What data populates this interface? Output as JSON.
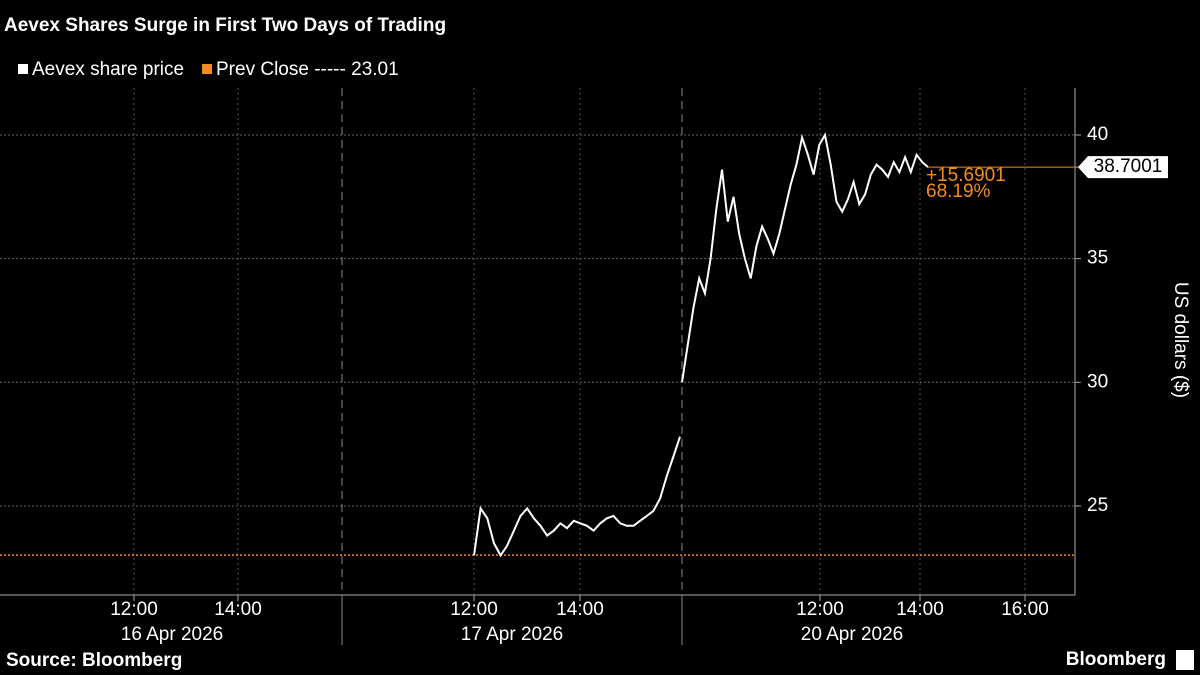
{
  "chart_data": {
    "type": "line",
    "title": "Aevex Shares Surge in First Two Days of Trading",
    "series": [
      {
        "name": "Aevex share price",
        "color": "#ffffff",
        "values": [
          23.0,
          24.9,
          24.5,
          23.5,
          23.0,
          23.4,
          24.0,
          24.6,
          24.9,
          24.5,
          24.2,
          23.8,
          24.0,
          24.3,
          24.1,
          24.4,
          24.3,
          24.2,
          24.0,
          24.3,
          24.5,
          24.6,
          24.3,
          24.2,
          24.2,
          24.4,
          24.6,
          24.8,
          25.3,
          26.2,
          27.0,
          27.8,
          null,
          30.0,
          31.5,
          33.0,
          34.2,
          33.6,
          35.0,
          37.0,
          38.6,
          36.5,
          37.5,
          36.0,
          35.0,
          34.2,
          35.5,
          36.3,
          35.8,
          35.2,
          36.0,
          37.0,
          38.0,
          38.8,
          39.9,
          39.2,
          38.4,
          39.6,
          40.0,
          38.8,
          37.3,
          36.9,
          37.4,
          38.1,
          37.2,
          37.6,
          38.4,
          38.8,
          38.6,
          38.3,
          38.9,
          38.5,
          39.1,
          38.5,
          39.2,
          38.9,
          38.7001
        ]
      }
    ],
    "reference_line": {
      "name": "Prev Close -----",
      "value": 23.01,
      "color": "#f28c1c"
    },
    "last_value_label": "38.7001",
    "change_annotation": {
      "absolute": "+15.6901",
      "percent": "68.19%"
    },
    "sessions": [
      {
        "date": "16 Apr 2026",
        "ticks": [
          "12:00",
          "14:00"
        ]
      },
      {
        "date": "17 Apr 2026",
        "ticks": [
          "12:00",
          "14:00"
        ]
      },
      {
        "date": "20 Apr 2026",
        "ticks": [
          "12:00",
          "14:00",
          "16:00"
        ]
      }
    ],
    "y_axis_label": "US dollars ($)",
    "ylim": [
      21.4,
      41.9
    ],
    "yticks": [
      25,
      30,
      35,
      40
    ],
    "grid": true,
    "source": "Source: Bloomberg",
    "brand": "Bloomberg"
  }
}
